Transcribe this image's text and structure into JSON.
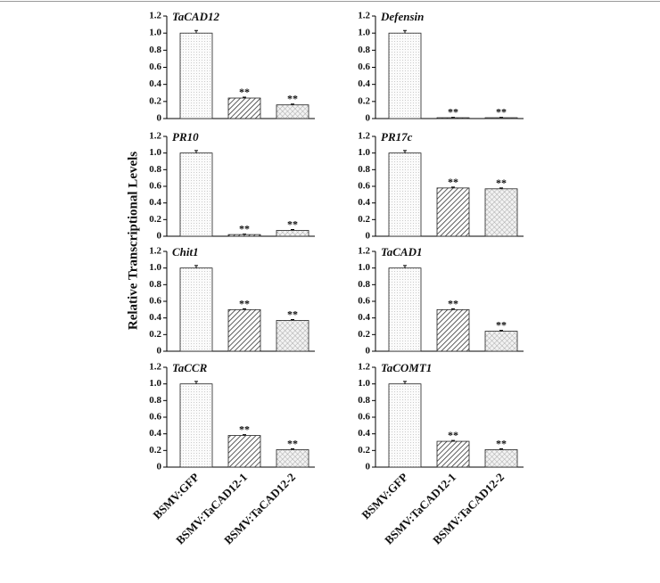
{
  "ylabel": "Relative Transcriptional Levels",
  "chart_data": [
    {
      "type": "bar",
      "title": "TaCAD12",
      "values": [
        1.0,
        0.24,
        0.16
      ],
      "errors": [
        0.03,
        0.01,
        0.01
      ],
      "annotations": [
        null,
        "**",
        "**"
      ],
      "ylim": [
        0,
        1.2
      ],
      "yticks": [
        0,
        0.2,
        0.4,
        0.6,
        0.8,
        {
          "value": 1,
          "label": "1.0"
        },
        1.2
      ]
    },
    {
      "type": "bar",
      "title": "Defensin",
      "values": [
        1.0,
        0.01,
        0.01
      ],
      "errors": [
        0.03,
        0.005,
        0.005
      ],
      "annotations": [
        null,
        "**",
        "**"
      ],
      "ylim": [
        0,
        1.2
      ],
      "yticks": [
        0,
        0.2,
        0.4,
        0.6,
        0.8,
        {
          "value": 1,
          "label": "1.0"
        },
        1.2
      ]
    },
    {
      "type": "bar",
      "title": "PR10",
      "values": [
        1.0,
        0.02,
        0.07
      ],
      "errors": [
        0.03,
        0.005,
        0.01
      ],
      "annotations": [
        null,
        "**",
        "**"
      ],
      "ylim": [
        0,
        1.2
      ],
      "yticks": [
        0,
        0.2,
        0.4,
        0.6,
        0.8,
        {
          "value": 1,
          "label": "1.0"
        },
        1.2
      ]
    },
    {
      "type": "bar",
      "title": "PR17c",
      "values": [
        1.0,
        0.58,
        0.57
      ],
      "errors": [
        0.03,
        0.01,
        0.01
      ],
      "annotations": [
        null,
        "**",
        "**"
      ],
      "ylim": [
        0,
        1.2
      ],
      "yticks": [
        0,
        0.2,
        0.4,
        0.6,
        0.8,
        {
          "value": 1,
          "label": "1.0"
        },
        1.2
      ]
    },
    {
      "type": "bar",
      "title": "Chit1",
      "values": [
        1.0,
        0.5,
        0.37
      ],
      "errors": [
        0.03,
        0.01,
        0.01
      ],
      "annotations": [
        null,
        "**",
        "**"
      ],
      "ylim": [
        0,
        1.2
      ],
      "yticks": [
        0,
        0.2,
        0.4,
        0.6,
        0.8,
        {
          "value": 1,
          "label": "1.0"
        },
        1.2
      ]
    },
    {
      "type": "bar",
      "title": "TaCAD1",
      "values": [
        1.0,
        0.5,
        0.24
      ],
      "errors": [
        0.03,
        0.01,
        0.01
      ],
      "annotations": [
        null,
        "**",
        "**"
      ],
      "ylim": [
        0,
        1.2
      ],
      "yticks": [
        0,
        0.2,
        0.4,
        0.6,
        0.8,
        {
          "value": 1,
          "label": "1.0"
        },
        1.2
      ]
    },
    {
      "type": "bar",
      "title": "TaCCR",
      "categories": [
        "BSMV:GFP",
        "BSMV:TaCAD12-1",
        "BSMV:TaCAD12-2"
      ],
      "values": [
        1.0,
        0.38,
        0.21
      ],
      "errors": [
        0.03,
        0.01,
        0.01
      ],
      "annotations": [
        null,
        "**",
        "**"
      ],
      "ylim": [
        0,
        1.2
      ],
      "yticks": [
        0,
        0.2,
        0.4,
        0.6,
        0.8,
        {
          "value": 1,
          "label": "1.0"
        },
        1.2
      ]
    },
    {
      "type": "bar",
      "title": "TaCOMT1",
      "categories": [
        "BSMV:GFP",
        "BSMV:TaCAD12-1",
        "BSMV:TaCAD12-2"
      ],
      "values": [
        1.0,
        0.31,
        0.21
      ],
      "errors": [
        0.03,
        0.01,
        0.01
      ],
      "annotations": [
        null,
        "**",
        "**"
      ],
      "ylim": [
        0,
        1.2
      ],
      "yticks": [
        0,
        0.2,
        0.4,
        0.6,
        0.8,
        {
          "value": 1,
          "label": "1.0"
        },
        1.2
      ]
    }
  ]
}
